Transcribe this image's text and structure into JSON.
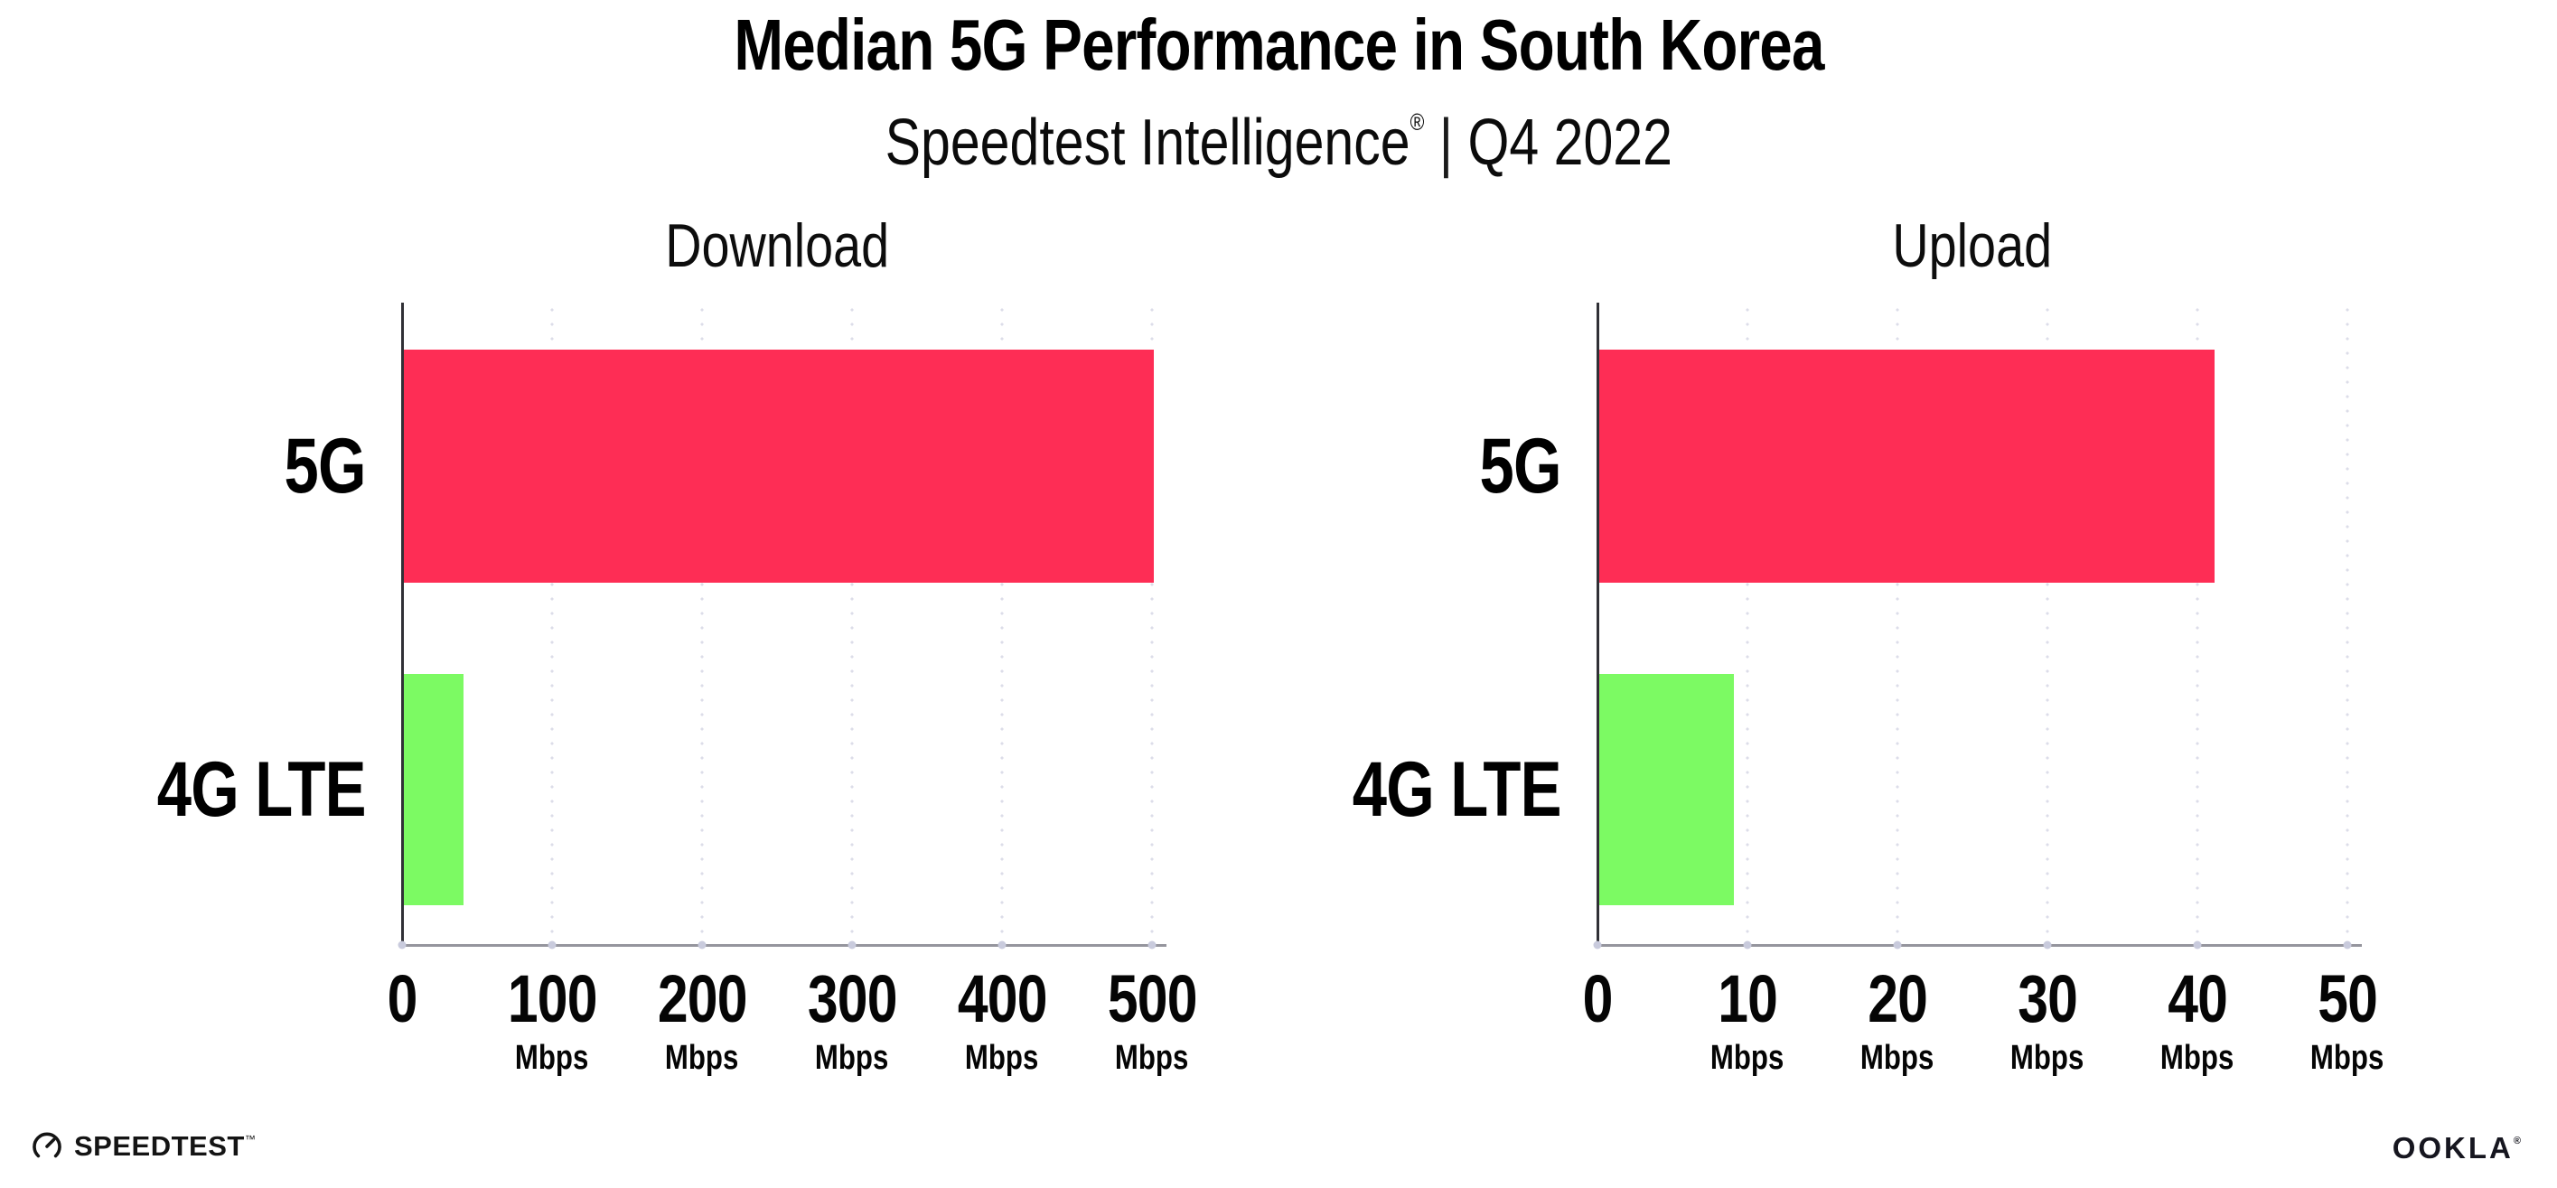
{
  "header": {
    "title": "Median 5G Performance in South Korea",
    "source": "Speedtest Intelligence",
    "registered_mark": "®",
    "separator": "|",
    "period": "Q4 2022"
  },
  "chart_data": [
    {
      "type": "bar",
      "orientation": "horizontal",
      "title": "Download",
      "categories": [
        "5G",
        "4G LTE"
      ],
      "values": [
        500,
        40
      ],
      "unit": "Mbps",
      "xlim": [
        0,
        500
      ],
      "tick_labels": [
        "0",
        "100",
        "200",
        "300",
        "400",
        "500"
      ],
      "bar_colors": [
        "#FE2D55",
        "#7CFA63"
      ],
      "grid": "dotted-vertical-gridlines",
      "legend": "none"
    },
    {
      "type": "bar",
      "orientation": "horizontal",
      "title": "Upload",
      "categories": [
        "5G",
        "4G LTE"
      ],
      "values": [
        41,
        9
      ],
      "unit": "Mbps",
      "xlim": [
        0,
        50
      ],
      "tick_labels": [
        "0",
        "10",
        "20",
        "30",
        "40",
        "50"
      ],
      "bar_colors": [
        "#FE2D55",
        "#7CFA63"
      ],
      "grid": "dotted-vertical-gridlines",
      "legend": "none"
    }
  ],
  "footer": {
    "speedtest_label": "SPEEDTEST",
    "speedtest_mark": "™",
    "ookla_label": "OOKLA",
    "ookla_mark": "®"
  },
  "colors": {
    "bar_5g": "#FE2D55",
    "bar_4g": "#7CFA63",
    "gridline": "#dcdde9",
    "axis_dark": "#303036",
    "axis_gray": "#95959d",
    "tick_dot": "#c9cbdd",
    "text": "#000000"
  }
}
